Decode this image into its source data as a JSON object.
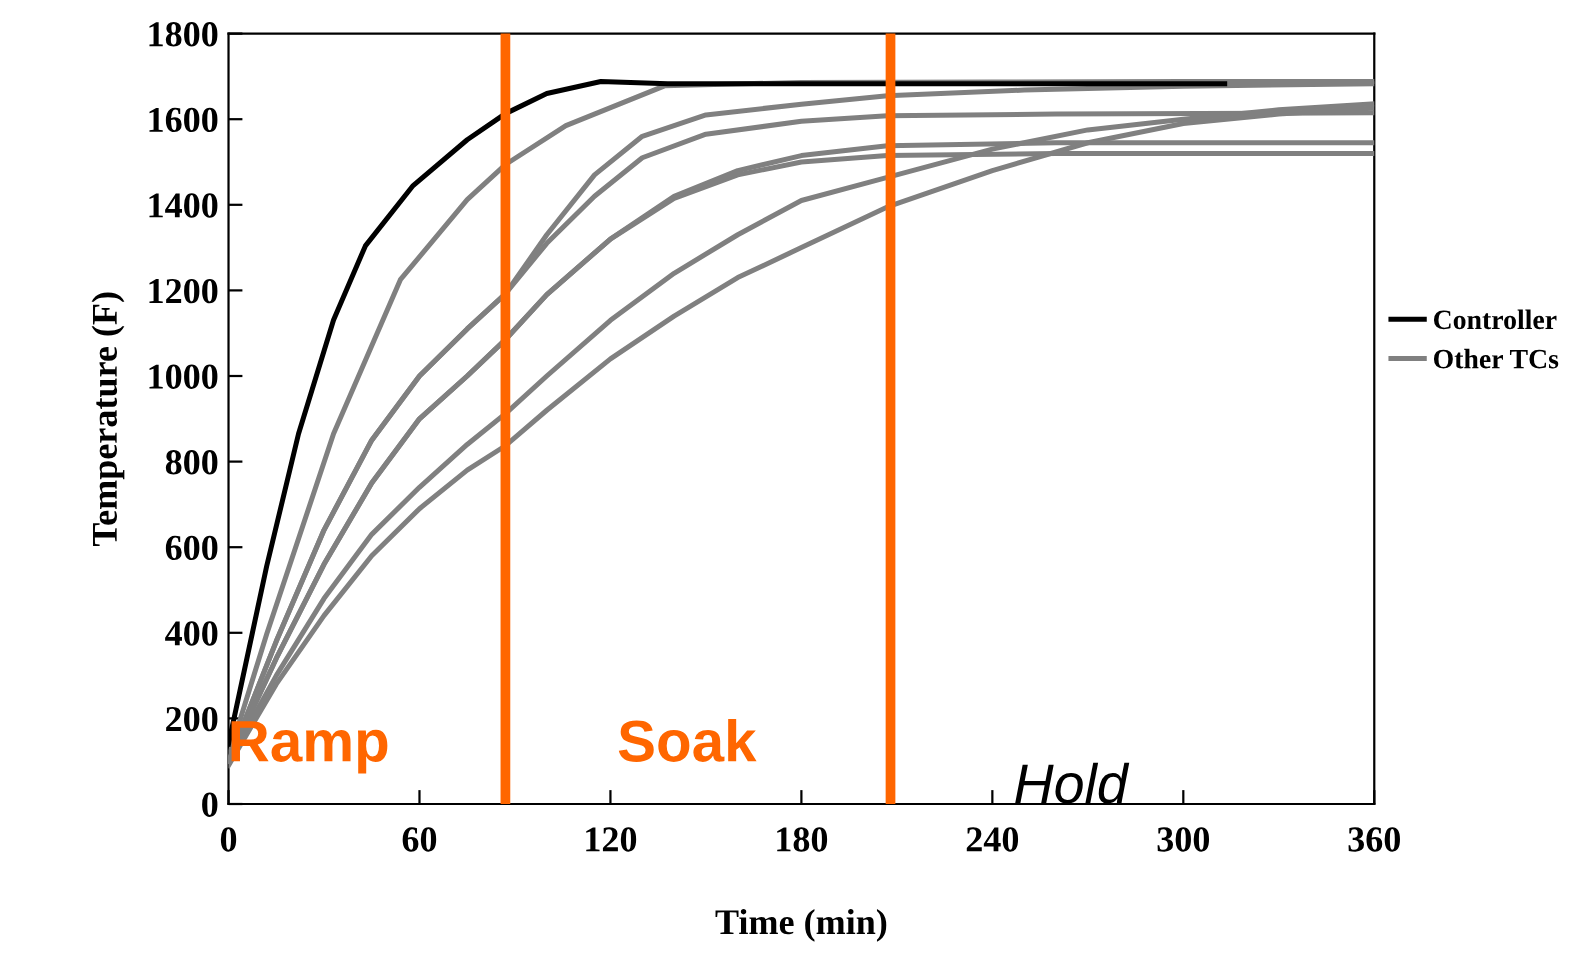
{
  "chart_data": {
    "type": "line",
    "xlabel": "Time (min)",
    "ylabel": "Temperature (F)",
    "xlim": [
      0,
      360
    ],
    "ylim": [
      0,
      1800
    ],
    "xticks": [
      0,
      60,
      120,
      180,
      240,
      300,
      360
    ],
    "yticks": [
      0,
      200,
      400,
      600,
      800,
      1000,
      1200,
      1400,
      1600,
      1800
    ],
    "grid": false,
    "legend": "right",
    "marker": "none",
    "line_style": "solid",
    "series": [
      {
        "name": "Controller",
        "color": "#000000",
        "x": [
          0,
          12,
          22,
          33,
          43,
          58,
          75,
          87,
          100,
          117,
          138,
          200,
          260,
          313
        ],
        "values": [
          140,
          556,
          865,
          1131,
          1304,
          1445,
          1552,
          1613,
          1660,
          1688,
          1683,
          1683,
          1683,
          1683
        ]
      },
      {
        "name": "Other TCs",
        "color": "#808080",
        "x": [
          0,
          12,
          33,
          54,
          75,
          87,
          106,
          137,
          180,
          240,
          300,
          360
        ],
        "values": [
          110,
          397,
          865,
          1225,
          1412,
          1494,
          1585,
          1678,
          1686,
          1687,
          1688,
          1688
        ]
      },
      {
        "color": "#808080",
        "x": [
          0,
          15,
          30,
          45,
          60,
          75,
          87,
          100,
          115,
          130,
          150,
          180,
          207,
          250,
          300,
          360
        ],
        "values": [
          100,
          380,
          640,
          850,
          1000,
          1110,
          1192,
          1330,
          1470,
          1560,
          1610,
          1635,
          1655,
          1668,
          1677,
          1683
        ]
      },
      {
        "color": "#808080",
        "x": [
          0,
          15,
          30,
          45,
          60,
          75,
          87,
          100,
          115,
          130,
          150,
          180,
          207,
          260,
          360
        ],
        "values": [
          100,
          380,
          640,
          850,
          1000,
          1110,
          1192,
          1310,
          1420,
          1510,
          1565,
          1595,
          1608,
          1612,
          1615
        ]
      },
      {
        "color": "#808080",
        "x": [
          0,
          15,
          30,
          45,
          60,
          75,
          87,
          100,
          120,
          140,
          160,
          180,
          207,
          260,
          360
        ],
        "values": [
          100,
          340,
          560,
          750,
          900,
          1000,
          1085,
          1190,
          1320,
          1420,
          1480,
          1515,
          1538,
          1545,
          1545
        ]
      },
      {
        "color": "#808080",
        "x": [
          0,
          15,
          30,
          45,
          60,
          75,
          87,
          100,
          120,
          140,
          160,
          180,
          207,
          260,
          360
        ],
        "values": [
          100,
          340,
          560,
          750,
          900,
          1000,
          1085,
          1190,
          1320,
          1415,
          1470,
          1500,
          1515,
          1520,
          1520
        ]
      },
      {
        "color": "#808080",
        "x": [
          0,
          15,
          30,
          45,
          60,
          75,
          87,
          100,
          120,
          140,
          160,
          180,
          207,
          240,
          270,
          300,
          330,
          360
        ],
        "values": [
          100,
          300,
          480,
          630,
          740,
          840,
          912,
          1000,
          1130,
          1240,
          1330,
          1410,
          1464,
          1530,
          1575,
          1600,
          1622,
          1636
        ]
      },
      {
        "color": "#808080",
        "x": [
          0,
          15,
          30,
          45,
          60,
          75,
          87,
          100,
          120,
          140,
          160,
          180,
          207,
          240,
          270,
          300,
          330,
          360
        ],
        "values": [
          90,
          280,
          440,
          580,
          690,
          780,
          837,
          920,
          1040,
          1140,
          1230,
          1300,
          1395,
          1480,
          1545,
          1590,
          1612,
          1626
        ]
      }
    ],
    "ref_lines": [
      {
        "axis": "x",
        "value": 87,
        "color": "#ff6600"
      },
      {
        "axis": "x",
        "value": 208,
        "color": "#ff6600"
      }
    ],
    "annotations": [
      "Ramp",
      "Soak",
      "Hold"
    ]
  }
}
